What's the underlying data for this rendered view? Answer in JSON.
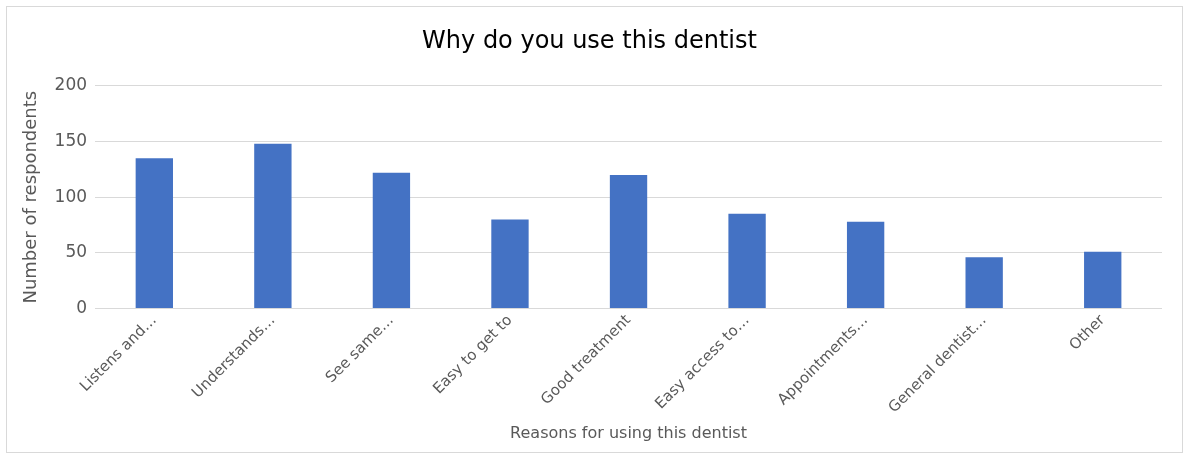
{
  "chart_data": {
    "type": "bar",
    "title": "Why do you use this dentist",
    "xlabel": "Reasons for using this dentist",
    "ylabel": "Number of respondents",
    "categories": [
      "Listens and…",
      "Understands…",
      "See same…",
      "Easy to get to",
      "Good treatment",
      "Easy access to…",
      "Appointments…",
      "General dentist…",
      "Other"
    ],
    "values": [
      135,
      148,
      122,
      80,
      120,
      85,
      78,
      46,
      51
    ],
    "color": "#4472c4",
    "ylim": [
      0,
      200
    ],
    "yticks": [
      0,
      50,
      100,
      150,
      200
    ],
    "grid": "y",
    "legend": false
  }
}
